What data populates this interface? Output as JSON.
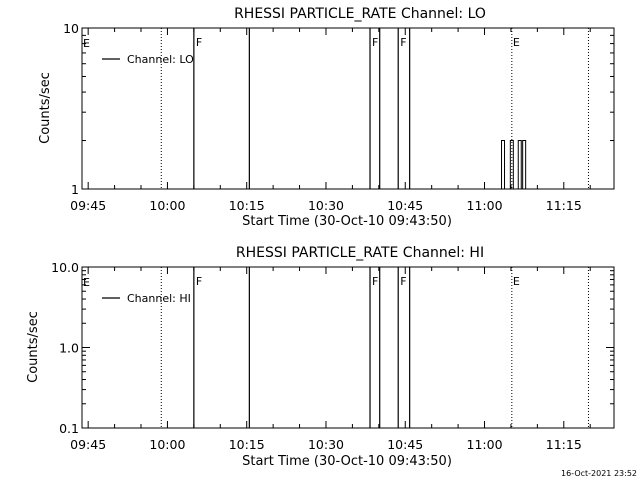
{
  "chart_data": [
    {
      "type": "line",
      "title": "RHESSI PARTICLE_RATE Channel: LO",
      "xlabel": "Start Time (30-Oct-10 09:43:50)",
      "ylabel": "Counts/sec",
      "x_ticks": [
        "09:45",
        "10:00",
        "10:15",
        "10:30",
        "10:45",
        "11:00",
        "11:15"
      ],
      "y_ticks": [
        "10",
        "1"
      ],
      "yscale": "log",
      "ylim": [
        1,
        10
      ],
      "xlim": [
        "09:43:50",
        "11:24:30"
      ],
      "legend": "Channel: LO",
      "legend_position": "top-left",
      "series": [
        {
          "name": "Channel: LO",
          "spikes": [
            {
              "t": "11:03:30",
              "value": 2.0
            },
            {
              "t": "11:05:10",
              "value": 2.0
            },
            {
              "t": "11:06:40",
              "value": 2.0
            },
            {
              "t": "11:07:30",
              "value": 2.0
            }
          ]
        }
      ],
      "solid_markers": [
        {
          "t": "10:05:00",
          "label": "F"
        },
        {
          "t": "10:15:30",
          "label": ""
        },
        {
          "t": "10:38:20",
          "label": "F"
        },
        {
          "t": "10:40:10",
          "label": ""
        },
        {
          "t": "10:43:40",
          "label": "F"
        },
        {
          "t": "10:45:50",
          "label": ""
        }
      ],
      "dotted_markers": [
        {
          "t": "09:58:50",
          "label": ""
        },
        {
          "t": "11:05:10",
          "label": "E"
        },
        {
          "t": "11:19:40",
          "label": ""
        }
      ],
      "edge_flag": "E"
    },
    {
      "type": "line",
      "title": "RHESSI PARTICLE_RATE Channel: HI",
      "xlabel": "Start Time (30-Oct-10 09:43:50)",
      "ylabel": "Counts/sec",
      "x_ticks": [
        "09:45",
        "10:00",
        "10:15",
        "10:30",
        "10:45",
        "11:00",
        "11:15"
      ],
      "y_ticks": [
        "10.0",
        "1.0",
        "0.1"
      ],
      "yscale": "log",
      "ylim": [
        0.1,
        10
      ],
      "xlim": [
        "09:43:50",
        "11:24:30"
      ],
      "legend": "Channel: HI",
      "legend_position": "top-left",
      "series": [
        {
          "name": "Channel: HI",
          "spikes": []
        }
      ],
      "solid_markers": [
        {
          "t": "10:05:00",
          "label": "F"
        },
        {
          "t": "10:15:30",
          "label": ""
        },
        {
          "t": "10:38:20",
          "label": "F"
        },
        {
          "t": "10:40:10",
          "label": ""
        },
        {
          "t": "10:43:40",
          "label": "F"
        },
        {
          "t": "10:45:50",
          "label": ""
        }
      ],
      "dotted_markers": [
        {
          "t": "09:58:50",
          "label": ""
        },
        {
          "t": "11:05:10",
          "label": "E"
        },
        {
          "t": "11:19:40",
          "label": ""
        }
      ],
      "edge_flag": "E"
    }
  ],
  "footer": {
    "timestamp": "16-Oct-2021 23:52"
  }
}
